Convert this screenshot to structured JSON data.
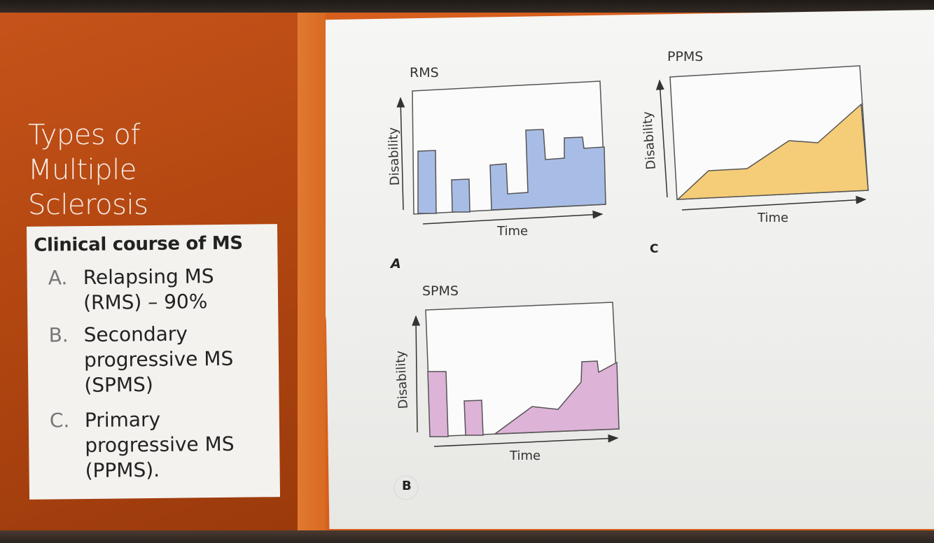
{
  "slide": {
    "title_lines": [
      "Types of",
      "Multiple",
      "Sclerosis"
    ],
    "box": {
      "heading": "Clinical course of MS",
      "items": [
        {
          "letter": "A.",
          "text_lines": [
            "Relapsing MS",
            "(RMS) – 90%"
          ]
        },
        {
          "letter": "B.",
          "text_lines": [
            "Secondary",
            "progressive MS",
            "(SPMS)"
          ]
        },
        {
          "letter": "C.",
          "text_lines": [
            "Primary",
            "progressive MS",
            "(PPMS)."
          ]
        }
      ]
    }
  },
  "figure": {
    "panels": [
      {
        "letter": "A",
        "title": "RMS",
        "ylabel": "Disability",
        "xlabel": "Time",
        "fill": "#a8bde6"
      },
      {
        "letter": "B",
        "title": "SPMS",
        "ylabel": "Disability",
        "xlabel": "Time",
        "fill": "#deb3d8"
      },
      {
        "letter": "C",
        "title": "PPMS",
        "ylabel": "Disability",
        "xlabel": "Time",
        "fill": "#f5cc78"
      }
    ]
  },
  "colors": {
    "slide_orange": "#c5531a",
    "stripe_orange": "#e07a30",
    "rms_fill": "#a8bde6",
    "spms_fill": "#deb3d8",
    "ppms_fill": "#f5cc78"
  }
}
